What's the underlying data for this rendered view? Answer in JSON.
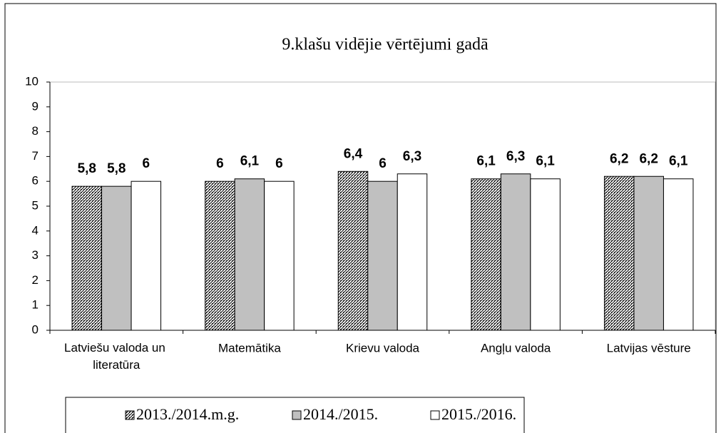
{
  "chart_data": {
    "type": "bar",
    "title": "9.klašu vidējie vērtējumi gadā",
    "categories": [
      "Latviešu valoda un literatūra",
      "Matemātika",
      "Krievu valoda",
      "Angļu valoda",
      "Latvijas vēsture"
    ],
    "series": [
      {
        "name": "2013./2014.m.g.",
        "color": "#ffffff",
        "pattern": "hatch",
        "values": [
          5.8,
          6,
          6.4,
          6.1,
          6.2
        ],
        "value_labels": [
          "5,8",
          "6",
          "6,4",
          "6,1",
          "6,2"
        ]
      },
      {
        "name": "2014./2015.",
        "color": "#c0c0c0",
        "values": [
          5.8,
          6.1,
          6,
          6.3,
          6.2
        ],
        "value_labels": [
          "5,8",
          "6,1",
          "6",
          "6,3",
          "6,2"
        ]
      },
      {
        "name": "2015./2016.",
        "color": "#ffffff",
        "values": [
          6,
          6,
          6.3,
          6.1,
          6.1
        ],
        "value_labels": [
          "6",
          "6",
          "6,3",
          "6,1",
          "6,1"
        ]
      }
    ],
    "ylim": [
      0,
      10
    ],
    "yticks": [
      0,
      1,
      2,
      3,
      4,
      5,
      6,
      7,
      8,
      9,
      10
    ],
    "grid": false,
    "legend": "bottom"
  }
}
